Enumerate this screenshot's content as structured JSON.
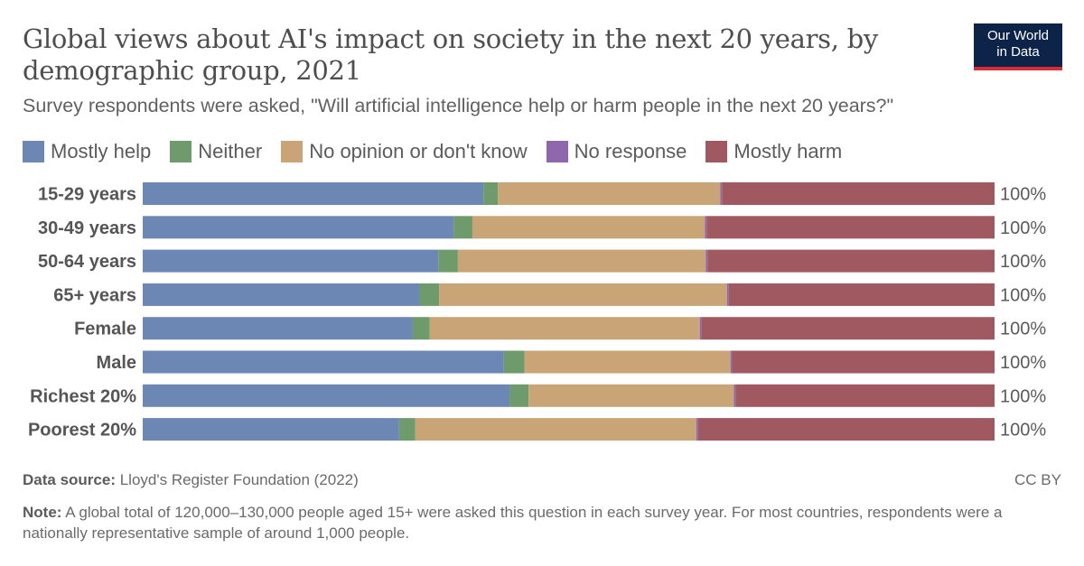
{
  "header": {
    "title": "Global views about AI's impact on society in the next 20 years, by demographic group, 2021",
    "subtitle": "Survey respondents were asked, \"Will artificial intelligence help or harm people in the next 20 years?\""
  },
  "logo": {
    "line1": "Our World",
    "line2": "in Data"
  },
  "footer": {
    "source_label": "Data source:",
    "source_text": "Lloyd's Register Foundation (2022)",
    "license": "CC BY",
    "note_label": "Note:",
    "note_text": "A global total of 120,000–130,000 people aged 15+ were asked this question in each survey year. For most countries, respondents were a nationally representative sample of around 1,000 people."
  },
  "chart_data": {
    "type": "bar",
    "orientation": "horizontal",
    "stacked": true,
    "categories": [
      "15-29 years",
      "30-49 years",
      "50-64 years",
      "65+ years",
      "Female",
      "Male",
      "Richest 20%",
      "Poorest 20%"
    ],
    "series": [
      {
        "name": "Mostly help",
        "color": "#6d87b5",
        "values": [
          40.0,
          36.5,
          34.7,
          32.5,
          31.7,
          42.4,
          43.1,
          30.1
        ]
      },
      {
        "name": "Neither",
        "color": "#6f9a6c",
        "values": [
          1.7,
          2.2,
          2.3,
          2.3,
          2.0,
          2.4,
          2.2,
          1.9
        ]
      },
      {
        "name": "No opinion or don't know",
        "color": "#c9a477",
        "values": [
          26.1,
          27.3,
          29.1,
          33.8,
          31.7,
          24.2,
          24.1,
          33.0
        ]
      },
      {
        "name": "No response",
        "color": "#8f67ad",
        "values": [
          0.2,
          0.2,
          0.2,
          0.2,
          0.2,
          0.2,
          0.2,
          0.2
        ]
      },
      {
        "name": "Mostly harm",
        "color": "#a15961",
        "values": [
          32.0,
          33.8,
          33.7,
          31.2,
          34.4,
          30.8,
          30.4,
          34.8
        ]
      }
    ],
    "totals": [
      "100%",
      "100%",
      "100%",
      "100%",
      "100%",
      "100%",
      "100%",
      "100%"
    ],
    "xlim": [
      0,
      100
    ],
    "grid": false,
    "legend_position": "top"
  }
}
